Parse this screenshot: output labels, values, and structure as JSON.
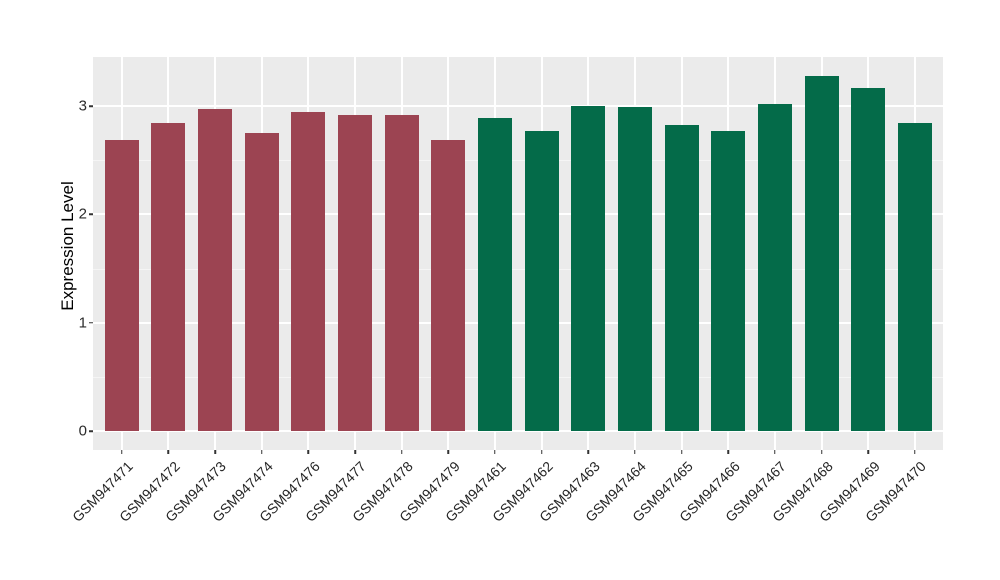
{
  "figure": {
    "background": "#FFFFFF",
    "panel_background": "#EBEBEB",
    "grid_major_color": "#FFFFFF",
    "grid_minor_color": "#F5F5F5",
    "axis_text_color": "#2B2B2B",
    "group_colors": {
      "left_group": "#9C4452",
      "right_group": "#046B49"
    }
  },
  "chart_data": {
    "type": "bar",
    "title": "",
    "xlabel": "",
    "ylabel": "Expression Level",
    "ylim": [
      0,
      3.46
    ],
    "yticks": [
      0,
      1,
      2,
      3
    ],
    "y_minor_ticks": [
      0.5,
      1.5,
      2.5
    ],
    "grid": true,
    "legend": false,
    "x_label_angle_deg": 45,
    "categories": [
      "GSM947471",
      "GSM947472",
      "GSM947473",
      "GSM947474",
      "GSM947476",
      "GSM947477",
      "GSM947478",
      "GSM947479",
      "GSM947461",
      "GSM947462",
      "GSM947463",
      "GSM947464",
      "GSM947465",
      "GSM947466",
      "GSM947467",
      "GSM947468",
      "GSM947469",
      "GSM947470"
    ],
    "values": [
      2.69,
      2.84,
      2.97,
      2.75,
      2.95,
      2.92,
      2.92,
      2.69,
      2.89,
      2.77,
      3.0,
      2.99,
      2.83,
      2.77,
      3.02,
      3.28,
      3.17,
      2.84
    ],
    "bar_colors": [
      "#9C4452",
      "#9C4452",
      "#9C4452",
      "#9C4452",
      "#9C4452",
      "#9C4452",
      "#9C4452",
      "#9C4452",
      "#046B49",
      "#046B49",
      "#046B49",
      "#046B49",
      "#046B49",
      "#046B49",
      "#046B49",
      "#046B49",
      "#046B49",
      "#046B49"
    ]
  }
}
